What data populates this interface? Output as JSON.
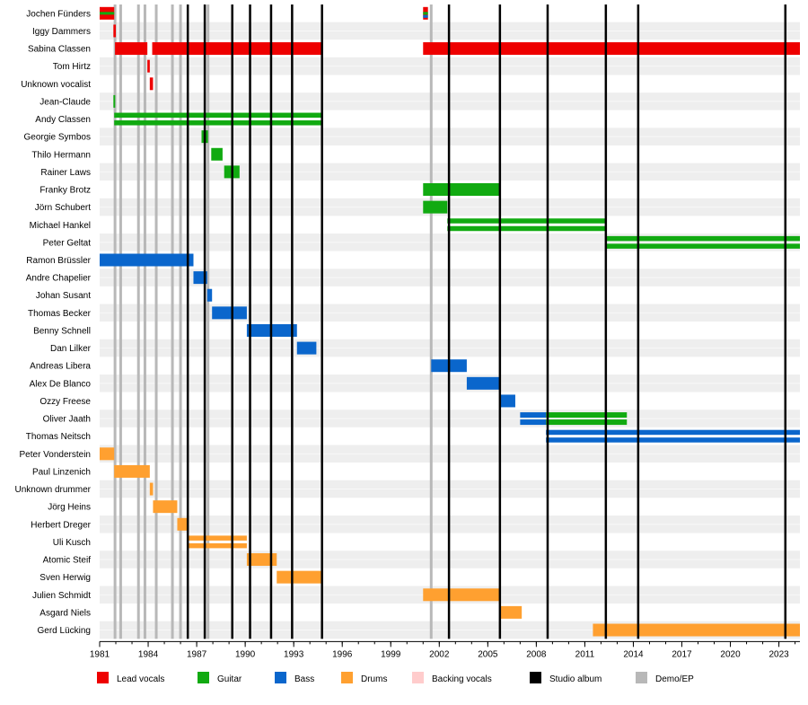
{
  "chart_data": {
    "type": "timeline",
    "x_range": [
      1981.0,
      2024.3
    ],
    "x_ticks": [
      "1981",
      "1984",
      "1987",
      "1990",
      "1993",
      "1996",
      "1999",
      "2002",
      "2005",
      "2008",
      "2011",
      "2014",
      "2017",
      "2020",
      "2023"
    ],
    "members": [
      "Jochen Fünders",
      "Iggy Dammers",
      "Sabina Classen",
      "Tom Hirtz",
      "Unknown vocalist",
      "Jean-Claude",
      "Andy Classen",
      "Georgie Symbos",
      "Thilo Hermann",
      "Rainer Laws",
      "Franky Brotz",
      "Jörn Schubert",
      "Michael Hankel",
      "Peter Geltat",
      "Ramon Brüssler",
      "Andre Chapelier",
      "Johan Susant",
      "Thomas Becker",
      "Benny Schnell",
      "Dan Lilker",
      "Andreas Libera",
      "Alex De Blanco",
      "Ozzy Freese",
      "Oliver Jaath",
      "Thomas Neitsch",
      "Peter Vonderstein",
      "Paul Linzenich",
      "Unknown drummer",
      "Jörg Heins",
      "Herbert Dreger",
      "Uli Kusch",
      "Atomic Steif",
      "Sven Herwig",
      "Julien Schmidt",
      "Asgard Niels",
      "Gerd Lücking"
    ],
    "roles": {
      "lead_vocals": "#ee0000",
      "guitar": "#11aa11",
      "bass": "#0a66cc",
      "drums": "#ffa030",
      "backing_vocals": "#ffcccc"
    },
    "bars": [
      {
        "member": 0,
        "role": "lead_vocals",
        "start": 1981.0,
        "end": 1981.9
      },
      {
        "member": 0,
        "role": "guitar",
        "start": 1981.0,
        "end": 1981.9,
        "style": "stripe"
      },
      {
        "member": 0,
        "role": "lead_vocals",
        "start": 2001.0,
        "end": 2001.3
      },
      {
        "member": 0,
        "role": "guitar",
        "start": 2001.0,
        "end": 2001.3,
        "style": "stripe"
      },
      {
        "member": 0,
        "role": "bass",
        "start": 2001.0,
        "end": 2001.3,
        "style": "stripe-low"
      },
      {
        "member": 1,
        "role": "lead_vocals",
        "start": 1981.85,
        "end": 1982.0
      },
      {
        "member": 2,
        "role": "lead_vocals",
        "start": 1981.95,
        "end": 1983.95
      },
      {
        "member": 2,
        "role": "lead_vocals",
        "start": 1984.25,
        "end": 1994.75
      },
      {
        "member": 2,
        "role": "lead_vocals",
        "start": 2001.0,
        "end": 2024.3
      },
      {
        "member": 3,
        "role": "lead_vocals",
        "start": 1983.95,
        "end": 1984.1
      },
      {
        "member": 4,
        "role": "lead_vocals",
        "start": 1984.1,
        "end": 1984.3
      },
      {
        "member": 5,
        "role": "guitar",
        "start": 1981.85,
        "end": 1981.95
      },
      {
        "member": 6,
        "role": "guitar",
        "start": 1981.9,
        "end": 1994.75,
        "style": "double"
      },
      {
        "member": 7,
        "role": "guitar",
        "start": 1987.3,
        "end": 1987.7
      },
      {
        "member": 8,
        "role": "guitar",
        "start": 1987.9,
        "end": 1988.6
      },
      {
        "member": 9,
        "role": "guitar",
        "start": 1988.7,
        "end": 1989.65
      },
      {
        "member": 10,
        "role": "guitar",
        "start": 2001.0,
        "end": 2005.7
      },
      {
        "member": 11,
        "role": "guitar",
        "start": 2001.0,
        "end": 2002.5
      },
      {
        "member": 12,
        "role": "guitar",
        "start": 2002.5,
        "end": 2012.25,
        "style": "double"
      },
      {
        "member": 13,
        "role": "guitar",
        "start": 2012.25,
        "end": 2024.3,
        "style": "double"
      },
      {
        "member": 14,
        "role": "bass",
        "start": 1981.0,
        "end": 1986.8
      },
      {
        "member": 15,
        "role": "bass",
        "start": 1986.8,
        "end": 1987.65
      },
      {
        "member": 16,
        "role": "bass",
        "start": 1987.65,
        "end": 1987.95
      },
      {
        "member": 17,
        "role": "bass",
        "start": 1987.95,
        "end": 1990.1
      },
      {
        "member": 18,
        "role": "bass",
        "start": 1990.1,
        "end": 1993.2
      },
      {
        "member": 19,
        "role": "bass",
        "start": 1993.2,
        "end": 1994.4
      },
      {
        "member": 20,
        "role": "bass",
        "start": 2001.5,
        "end": 2003.7
      },
      {
        "member": 21,
        "role": "bass",
        "start": 2003.7,
        "end": 2005.8
      },
      {
        "member": 22,
        "role": "bass",
        "start": 2005.8,
        "end": 2006.7
      },
      {
        "member": 23,
        "role": "bass",
        "start": 2007.0,
        "end": 2013.6,
        "bicolor": "guitar",
        "switch": 2008.6
      },
      {
        "member": 24,
        "role": "bass",
        "start": 2008.6,
        "end": 2024.3,
        "style": "double"
      },
      {
        "member": 25,
        "role": "drums",
        "start": 1981.0,
        "end": 1981.9
      },
      {
        "member": 26,
        "role": "drums",
        "start": 1981.9,
        "end": 1984.1
      },
      {
        "member": 27,
        "role": "drums",
        "start": 1984.1,
        "end": 1984.3
      },
      {
        "member": 28,
        "role": "drums",
        "start": 1984.3,
        "end": 1985.8
      },
      {
        "member": 29,
        "role": "drums",
        "start": 1985.8,
        "end": 1986.4
      },
      {
        "member": 30,
        "role": "drums",
        "start": 1986.4,
        "end": 1990.1,
        "style": "double"
      },
      {
        "member": 31,
        "role": "drums",
        "start": 1990.1,
        "end": 1991.95
      },
      {
        "member": 32,
        "role": "drums",
        "start": 1991.95,
        "end": 1994.75
      },
      {
        "member": 33,
        "role": "drums",
        "start": 2001.0,
        "end": 2005.8
      },
      {
        "member": 34,
        "role": "drums",
        "start": 2005.8,
        "end": 2007.1
      },
      {
        "member": 35,
        "role": "drums",
        "start": 2011.5,
        "end": 2024.3
      }
    ],
    "studio_albums": [
      1986.45,
      1987.5,
      1989.2,
      1990.3,
      1991.6,
      1992.9,
      1994.75,
      2002.6,
      2005.75,
      2008.7,
      2012.3,
      2014.3,
      2023.4
    ],
    "demo_ep": [
      1981.95,
      1982.3,
      1983.4,
      1983.8,
      1984.5,
      1985.5,
      1986.0,
      1987.7,
      2001.5
    ],
    "legend": [
      {
        "label": "Lead vocals",
        "color": "#ee0000"
      },
      {
        "label": "Guitar",
        "color": "#11aa11"
      },
      {
        "label": "Bass",
        "color": "#0a66cc"
      },
      {
        "label": "Drums",
        "color": "#ffa030"
      },
      {
        "label": "Backing vocals",
        "color": "#ffcccc"
      },
      {
        "label": "Studio album",
        "color": "#000000"
      },
      {
        "label": "Demo/EP",
        "color": "#b8b8b8"
      }
    ]
  }
}
